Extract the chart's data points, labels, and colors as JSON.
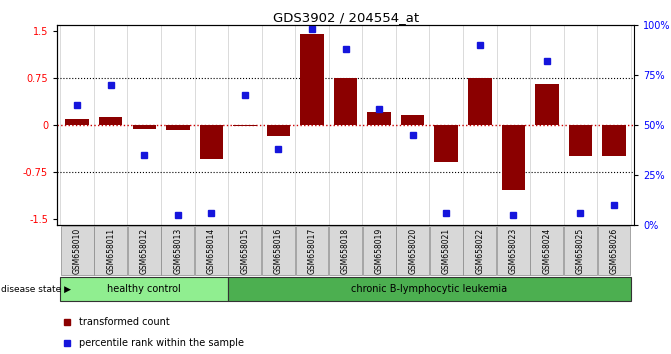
{
  "title": "GDS3902 / 204554_at",
  "samples": [
    "GSM658010",
    "GSM658011",
    "GSM658012",
    "GSM658013",
    "GSM658014",
    "GSM658015",
    "GSM658016",
    "GSM658017",
    "GSM658018",
    "GSM658019",
    "GSM658020",
    "GSM658021",
    "GSM658022",
    "GSM658023",
    "GSM658024",
    "GSM658025",
    "GSM658026"
  ],
  "bar_values": [
    0.1,
    0.12,
    -0.07,
    -0.08,
    -0.55,
    -0.02,
    -0.18,
    1.45,
    0.75,
    0.2,
    0.15,
    -0.6,
    0.75,
    -1.05,
    0.65,
    -0.5,
    -0.5
  ],
  "dot_values": [
    60,
    70,
    35,
    5,
    6,
    65,
    38,
    98,
    88,
    58,
    45,
    6,
    90,
    5,
    82,
    6,
    10
  ],
  "healthy_count": 5,
  "bar_color": "#8B0000",
  "dot_color": "#1515DC",
  "bar_zero_color": "#CC0000",
  "ylim": [
    -1.6,
    1.6
  ],
  "y2lim": [
    0,
    100
  ],
  "yticks": [
    -1.5,
    -0.75,
    0,
    0.75,
    1.5
  ],
  "ytick_labels": [
    "-1.5",
    "-0.75",
    "0",
    "0.75",
    "1.5"
  ],
  "y2ticks": [
    0,
    25,
    50,
    75,
    100
  ],
  "y2ticklabels": [
    "0%",
    "25%",
    "50%",
    "75%",
    "100%"
  ],
  "hlines": [
    0.75,
    -0.75
  ],
  "healthy_color": "#90EE90",
  "leukemia_color": "#4CAF50",
  "healthy_label": "healthy control",
  "leukemia_label": "chronic B-lymphocytic leukemia",
  "disease_label": "disease state",
  "legend_bar": "transformed count",
  "legend_dot": "percentile rank within the sample"
}
